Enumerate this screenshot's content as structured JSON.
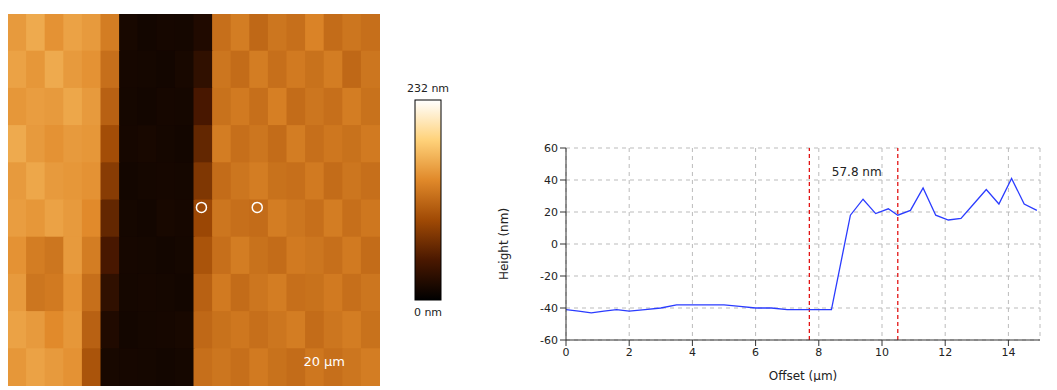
{
  "chart_data": [
    {
      "type": "heatmap",
      "tick_labels": false,
      "xlim": [
        0,
        100
      ],
      "ylim": [
        0,
        100
      ],
      "cells": [
        [
          150,
          160,
          145,
          155,
          150,
          130,
          15,
          12,
          14,
          13,
          20,
          120,
          130,
          115,
          125,
          120,
          135,
          118,
          125,
          120
        ],
        [
          155,
          148,
          160,
          150,
          145,
          120,
          14,
          13,
          12,
          15,
          30,
          125,
          118,
          130,
          120,
          128,
          122,
          130,
          115,
          125
        ],
        [
          148,
          152,
          150,
          158,
          150,
          110,
          13,
          12,
          14,
          13,
          45,
          122,
          128,
          120,
          132,
          118,
          125,
          120,
          130,
          122
        ],
        [
          160,
          150,
          145,
          150,
          148,
          95,
          14,
          15,
          13,
          12,
          60,
          130,
          120,
          125,
          118,
          130,
          120,
          126,
          122,
          128
        ],
        [
          150,
          158,
          150,
          148,
          145,
          80,
          12,
          13,
          14,
          13,
          75,
          118,
          125,
          130,
          122,
          120,
          128,
          118,
          125,
          120
        ],
        [
          152,
          148,
          155,
          150,
          140,
          60,
          13,
          12,
          15,
          14,
          90,
          125,
          120,
          118,
          130,
          125,
          120,
          130,
          120,
          126
        ],
        [
          145,
          130,
          125,
          150,
          130,
          45,
          14,
          13,
          12,
          13,
          100,
          120,
          130,
          122,
          118,
          128,
          125,
          120,
          128,
          118
        ],
        [
          150,
          125,
          128,
          145,
          120,
          30,
          13,
          14,
          13,
          12,
          110,
          128,
          118,
          125,
          130,
          120,
          122,
          128,
          120,
          125
        ],
        [
          155,
          150,
          140,
          148,
          110,
          20,
          12,
          13,
          14,
          15,
          115,
          122,
          126,
          120,
          125,
          130,
          118,
          125,
          130,
          122
        ],
        [
          148,
          155,
          150,
          145,
          100,
          15,
          14,
          13,
          12,
          13,
          120,
          125,
          120,
          128,
          122,
          118,
          126,
          120,
          125,
          130
        ]
      ],
      "colors": [
        "#000000",
        "#4a1800",
        "#a04a05",
        "#e0892a",
        "#ffd27a",
        "#ffffff"
      ],
      "colorbar": {
        "range": [
          0,
          232
        ],
        "ticks": [
          {
            "value": 232,
            "label": "232 nm"
          },
          {
            "value": 0,
            "label": "0 nm"
          }
        ]
      },
      "scale_bar": {
        "length": 20,
        "label": "20 µm"
      },
      "profile": {
        "x": [
          52,
          67
        ],
        "y": 48
      }
    },
    {
      "type": "line",
      "grid": true,
      "xlabel": "Offset (µm)",
      "ylabel": "Height (nm)",
      "xlim": [
        0,
        15
      ],
      "xticks": [
        0,
        2,
        4,
        6,
        8,
        10,
        12,
        14
      ],
      "ylim": [
        -60,
        60
      ],
      "yticks": [
        -60,
        -40,
        -20,
        0,
        20,
        40,
        60
      ],
      "x": [
        0,
        0.4,
        0.8,
        1.2,
        1.6,
        2,
        2.5,
        3,
        3.5,
        4,
        4.5,
        5,
        5.5,
        6,
        6.5,
        7,
        7.5,
        8,
        8.4,
        9,
        9.4,
        9.8,
        10.2,
        10.5,
        10.9,
        11.3,
        11.7,
        12.1,
        12.5,
        12.9,
        13.3,
        13.7,
        14.1,
        14.5,
        14.9
      ],
      "values": [
        -41,
        -42,
        -43,
        -42,
        -41,
        -42,
        -41,
        -40,
        -38,
        -38,
        -38,
        -38,
        -39,
        -40,
        -40,
        -41,
        -41,
        -41,
        -41,
        18,
        28,
        19,
        22,
        18,
        21,
        35,
        18,
        15,
        16,
        25,
        34,
        25,
        41,
        25,
        21
      ],
      "color": "#2b3cff",
      "cursors": {
        "x": [
          7.7,
          10.5
        ],
        "color": "#e00000",
        "line_style": "dashed"
      },
      "annotation": {
        "text": "57.8 nm",
        "x": 9.2,
        "y": 45
      }
    }
  ]
}
